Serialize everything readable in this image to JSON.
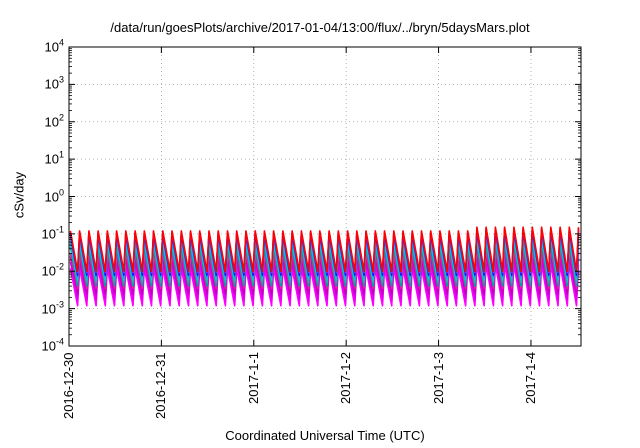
{
  "title": "/data/run/goesPlots/archive/2017-01-04/13:00/flux/../bryn/5daysMars.plot",
  "chart_data": {
    "type": "line",
    "title": "/data/run/goesPlots/archive/2017-01-04/13:00/flux/../bryn/5daysMars.plot",
    "xlabel": "Coordinated Universal Time (UTC)",
    "ylabel": "cSv/day",
    "yscale": "log",
    "ylim": [
      0.0001,
      10000
    ],
    "xlim": [
      "2016-12-30 00:00",
      "2017-01-04 13:00"
    ],
    "grid": true,
    "legend": "none",
    "x_ticks": [
      "2016-12-30",
      "2016-12-31",
      "2017-1-1",
      "2017-1-2",
      "2017-1-3",
      "2017-1-4"
    ],
    "y_ticks": [
      {
        "base": "10",
        "exp": "4"
      },
      {
        "base": "10",
        "exp": "3"
      },
      {
        "base": "10",
        "exp": "2"
      },
      {
        "base": "10",
        "exp": "1"
      },
      {
        "base": "10",
        "exp": "0"
      },
      {
        "base": "10",
        "exp": "-1"
      },
      {
        "base": "10",
        "exp": "-2"
      },
      {
        "base": "10",
        "exp": "-3"
      },
      {
        "base": "10",
        "exp": "-4"
      }
    ],
    "period_hours": 2.4,
    "series": [
      {
        "color": "#ff00ff",
        "low": 0.0012,
        "high": 0.012
      },
      {
        "color": "#dd00ee",
        "low": 0.0018,
        "high": 0.018
      },
      {
        "color": "#c000c0",
        "low": 0.0025,
        "high": 0.025
      },
      {
        "color": "#ff1493",
        "low": 0.0035,
        "high": 0.03
      },
      {
        "color": "#00a0a0",
        "low": 0.004,
        "high": 0.045
      },
      {
        "color": "#20b2aa",
        "low": 0.005,
        "high": 0.055
      },
      {
        "color": "#00ced1",
        "low": 0.006,
        "high": 0.065
      },
      {
        "color": "#1e90ff",
        "low": 0.007,
        "high": 0.08
      },
      {
        "color": "#0000ff",
        "low": 0.008,
        "high": 0.1
      },
      {
        "color": "#8a2be2",
        "low": 0.009,
        "high": 0.11
      },
      {
        "color": "#ff0000",
        "low": 0.01,
        "high": 0.12
      }
    ]
  }
}
